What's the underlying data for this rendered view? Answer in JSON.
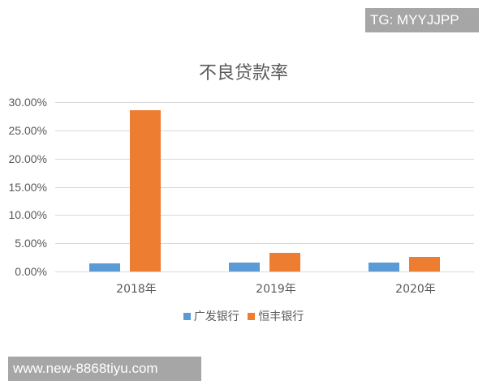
{
  "watermarks": {
    "top": "TG: MYYJJPP",
    "bottom": "www.new-8868tiyu.com"
  },
  "colors": {
    "series_1": "#5b9bd5",
    "series_2": "#ed7d31",
    "grid": "#d9d9d9",
    "text": "#595959"
  },
  "chart_data": {
    "type": "bar",
    "title": "不良贷款率",
    "xlabel": "",
    "ylabel": "",
    "categories": [
      "2018年",
      "2019年",
      "2020年"
    ],
    "series": [
      {
        "name": "广发银行",
        "color": "#5b9bd5",
        "values": [
          1.45,
          1.6,
          1.6
        ]
      },
      {
        "name": "恒丰银行",
        "color": "#ed7d31",
        "values": [
          28.5,
          3.3,
          2.6
        ]
      }
    ],
    "value_format": "percent",
    "ylim": [
      0,
      30
    ],
    "yticks": [
      "0.00%",
      "5.00%",
      "10.00%",
      "15.00%",
      "20.00%",
      "25.00%",
      "30.00%"
    ],
    "grid": true,
    "legend_position": "bottom"
  }
}
